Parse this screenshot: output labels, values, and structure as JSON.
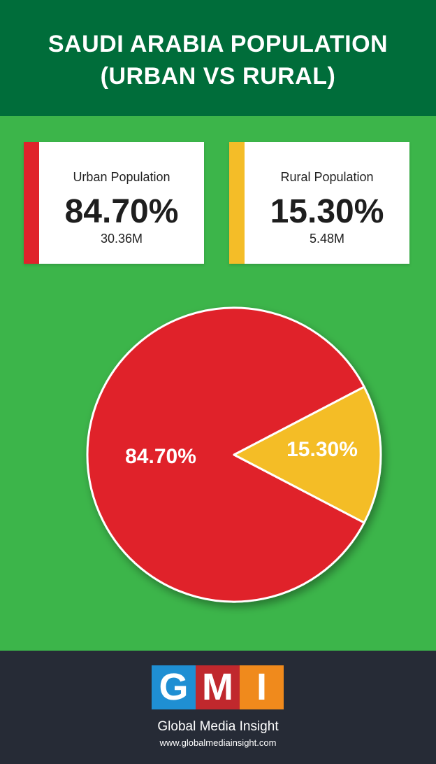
{
  "header": {
    "title_line1": "SAUDI ARABIA POPULATION",
    "title_line2": "(URBAN VS RURAL)"
  },
  "stats": {
    "urban": {
      "label": "Urban Population",
      "percent": "84.70%",
      "count": "30.36M",
      "color": "#e0232b"
    },
    "rural": {
      "label": "Rural Population",
      "percent": "15.30%",
      "count": "5.48M",
      "color": "#f4bd28"
    }
  },
  "chart_data": {
    "type": "pie",
    "categories": [
      "Urban",
      "Rural"
    ],
    "values": [
      84.7,
      15.3
    ],
    "labels": [
      "84.70%",
      "15.30%"
    ],
    "colors": [
      "#e0232b",
      "#f4bd28"
    ]
  },
  "footer": {
    "logo_letters": [
      "G",
      "M",
      "I"
    ],
    "logo_colors": [
      "#1f8fd3",
      "#c0282d",
      "#f08a1c"
    ],
    "brand": "Global Media Insight",
    "url": "www.globalmediainsight.com"
  }
}
